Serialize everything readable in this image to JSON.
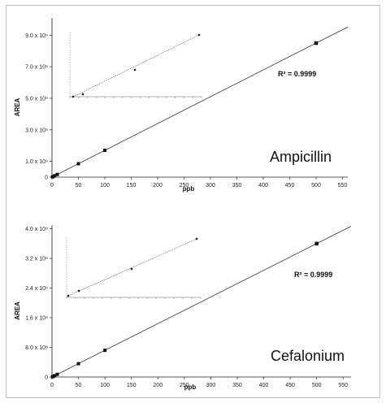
{
  "chart_data": [
    {
      "type": "scatter",
      "name_label": "Ampicillin",
      "annotation": "R² = 0.9999",
      "xlabel": "ppb",
      "ylabel": "AREA",
      "xlim": [
        0,
        560
      ],
      "ylim": [
        0,
        10100000000
      ],
      "xticks": [
        0,
        50,
        100,
        150,
        200,
        250,
        300,
        350,
        400,
        450,
        500,
        550
      ],
      "yticks": [
        0,
        1000000000,
        3000000000,
        5000000000,
        7000000000,
        9000000000
      ],
      "ytick_labels": [
        "0",
        "1.0 x 10⁹",
        "3.0 x 10⁹",
        "5.0 x 10⁹",
        "7.0 x 10⁹",
        "9.0 x 10⁹"
      ],
      "x": [
        1,
        2,
        5,
        10,
        50,
        100,
        500
      ],
      "y": [
        17000000,
        34000000,
        85000000,
        170000000,
        850000000,
        1700000000,
        8500000000
      ],
      "fit_line": {
        "x": [
          0,
          560
        ],
        "y": [
          0,
          9520000000
        ]
      },
      "inset": {
        "points": 4
      }
    },
    {
      "type": "scatter",
      "name_label": "Cefalonium",
      "annotation": "R² = 0.9999",
      "xlabel": "ppb",
      "ylabel": "AREA",
      "xlim": [
        0,
        565
      ],
      "ylim": [
        0,
        4100000000
      ],
      "xticks": [
        0,
        50,
        100,
        150,
        200,
        250,
        300,
        350,
        400,
        450,
        500,
        550
      ],
      "yticks": [
        0,
        800000000,
        1600000000,
        2400000000,
        3200000000,
        4000000000
      ],
      "ytick_labels": [
        "0",
        "8.0 x 10⁸",
        "1.6 x 10⁹",
        "2.4 x 10⁹",
        "3.2 x 10⁹",
        "4.0 x 10⁹"
      ],
      "x": [
        1,
        2,
        5,
        10,
        50,
        100,
        500
      ],
      "y": [
        7000000,
        14000000,
        36000000,
        72000000,
        360000000,
        720000000,
        3600000000
      ],
      "fit_line": {
        "x": [
          0,
          565
        ],
        "y": [
          0,
          4068000000
        ]
      },
      "inset": {
        "points": 4
      }
    }
  ]
}
